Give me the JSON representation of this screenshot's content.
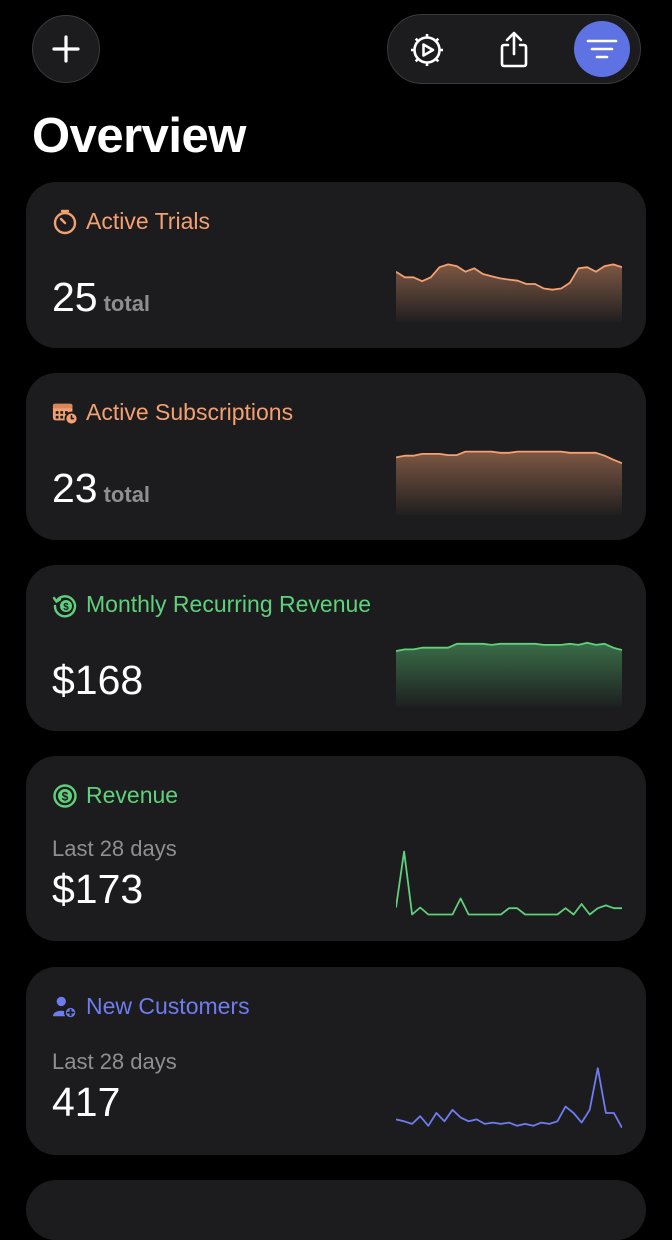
{
  "page_title": "Overview",
  "colors": {
    "orange": "#f4a071",
    "green": "#5fd07b",
    "blue": "#6e7cf0",
    "filter_active": "#5e72e4",
    "card_bg": "#1c1c1e"
  },
  "toolbar": {
    "add_icon": "plus-icon",
    "settings_icon": "gear-play-icon",
    "share_icon": "share-icon",
    "filter_icon": "filter-lines-icon"
  },
  "cards": [
    {
      "title": "Active Trials",
      "icon": "timer-icon",
      "value": "25",
      "unit": "total",
      "spark": [
        0.72,
        0.62,
        0.62,
        0.55,
        0.62,
        0.8,
        0.85,
        0.82,
        0.72,
        0.78,
        0.68,
        0.64,
        0.6,
        0.58,
        0.56,
        0.5,
        0.5,
        0.42,
        0.4,
        0.42,
        0.52,
        0.78,
        0.8,
        0.72,
        0.82,
        0.85,
        0.8
      ]
    },
    {
      "title": "Active Subscriptions",
      "icon": "calendar-clock-icon",
      "value": "23",
      "unit": "total",
      "spark": [
        0.82,
        0.85,
        0.85,
        0.88,
        0.88,
        0.88,
        0.86,
        0.86,
        0.92,
        0.92,
        0.92,
        0.92,
        0.9,
        0.9,
        0.92,
        0.92,
        0.92,
        0.92,
        0.92,
        0.92,
        0.9,
        0.9,
        0.9,
        0.9,
        0.85,
        0.78,
        0.72
      ]
    },
    {
      "title": "Monthly Recurring Revenue",
      "icon": "dollar-history-icon",
      "value": "$168",
      "unit": "",
      "spark": [
        0.82,
        0.85,
        0.85,
        0.88,
        0.88,
        0.88,
        0.88,
        0.95,
        0.95,
        0.95,
        0.95,
        0.93,
        0.95,
        0.95,
        0.95,
        0.95,
        0.95,
        0.93,
        0.93,
        0.93,
        0.95,
        0.93,
        0.97,
        0.93,
        0.95,
        0.88,
        0.84
      ]
    },
    {
      "title": "Revenue",
      "subtitle": "Last 28 days",
      "icon": "dollar-circle-icon",
      "value": "$173",
      "unit": "",
      "spark": [
        0.15,
        0.95,
        0.05,
        0.15,
        0.05,
        0.05,
        0.05,
        0.05,
        0.28,
        0.05,
        0.05,
        0.05,
        0.05,
        0.05,
        0.14,
        0.14,
        0.05,
        0.05,
        0.05,
        0.05,
        0.05,
        0.14,
        0.05,
        0.2,
        0.05,
        0.14,
        0.18,
        0.14,
        0.14
      ]
    },
    {
      "title": "New Customers",
      "subtitle": "Last 28 days",
      "icon": "person-add-icon",
      "value": "417",
      "unit": "",
      "spark": [
        0.15,
        0.12,
        0.08,
        0.2,
        0.05,
        0.25,
        0.12,
        0.3,
        0.18,
        0.12,
        0.15,
        0.08,
        0.1,
        0.08,
        0.1,
        0.05,
        0.08,
        0.05,
        0.1,
        0.08,
        0.12,
        0.35,
        0.25,
        0.1,
        0.3,
        0.95,
        0.25,
        0.25,
        0.02
      ]
    }
  ]
}
